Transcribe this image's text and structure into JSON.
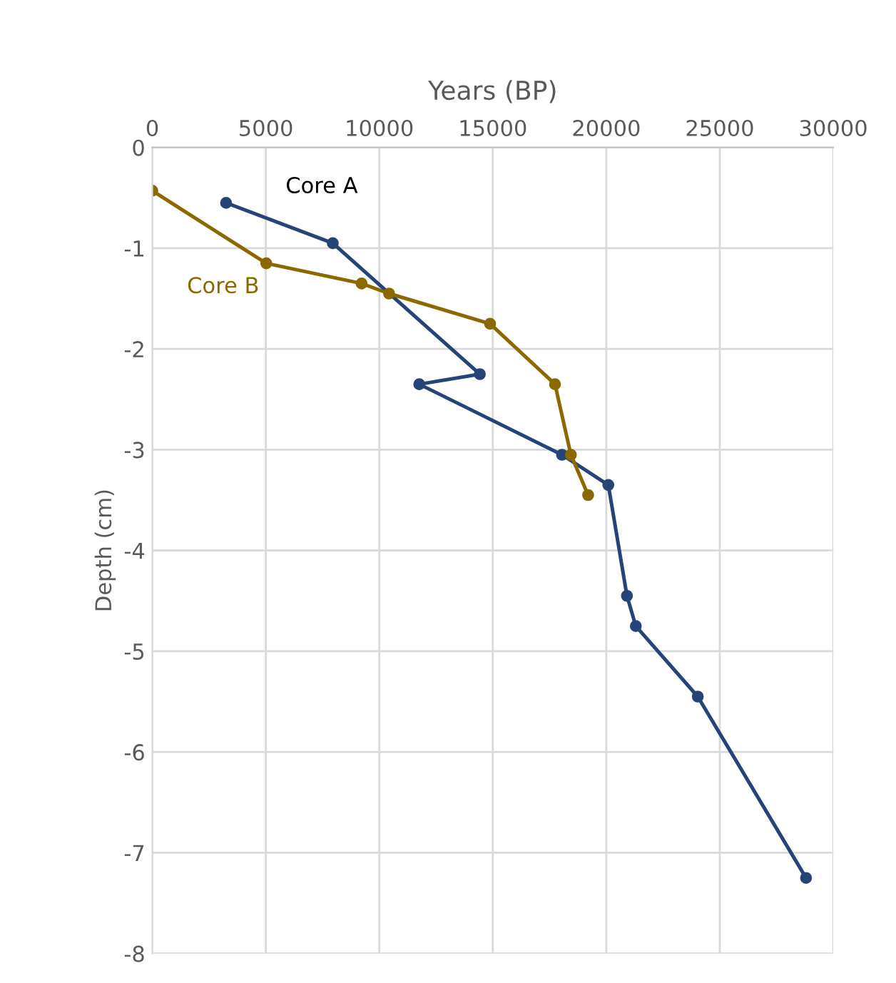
{
  "chart_data": {
    "type": "line",
    "xlabel": "Years (BP)",
    "ylabel": "Depth (cm)",
    "xlim": [
      0,
      30000
    ],
    "xticks": [
      0,
      5000,
      10000,
      15000,
      20000,
      25000,
      30000
    ],
    "ylim": [
      -8,
      0
    ],
    "yticks": [
      -8,
      -7,
      -6,
      -5,
      -4,
      -3,
      -2,
      -1,
      0
    ],
    "grid": true,
    "marker": "circle",
    "line_style": "solid",
    "legend": false,
    "series": [
      {
        "name": "Core A",
        "color": "#264478",
        "x": [
          3250,
          7950,
          14430,
          11760,
          18050,
          20090,
          20910,
          21300,
          24030,
          28800
        ],
        "values": [
          -0.55,
          -0.95,
          -2.25,
          -2.35,
          -3.05,
          -3.35,
          -4.45,
          -4.75,
          -5.45,
          -7.25
        ]
      },
      {
        "name": "Core B",
        "color": "#8a6a00",
        "x": [
          0,
          5020,
          9220,
          10430,
          14880,
          17740,
          18440,
          19200
        ],
        "values": [
          -0.43,
          -1.15,
          -1.35,
          -1.45,
          -1.75,
          -2.35,
          -3.05,
          -3.45
        ]
      }
    ]
  }
}
